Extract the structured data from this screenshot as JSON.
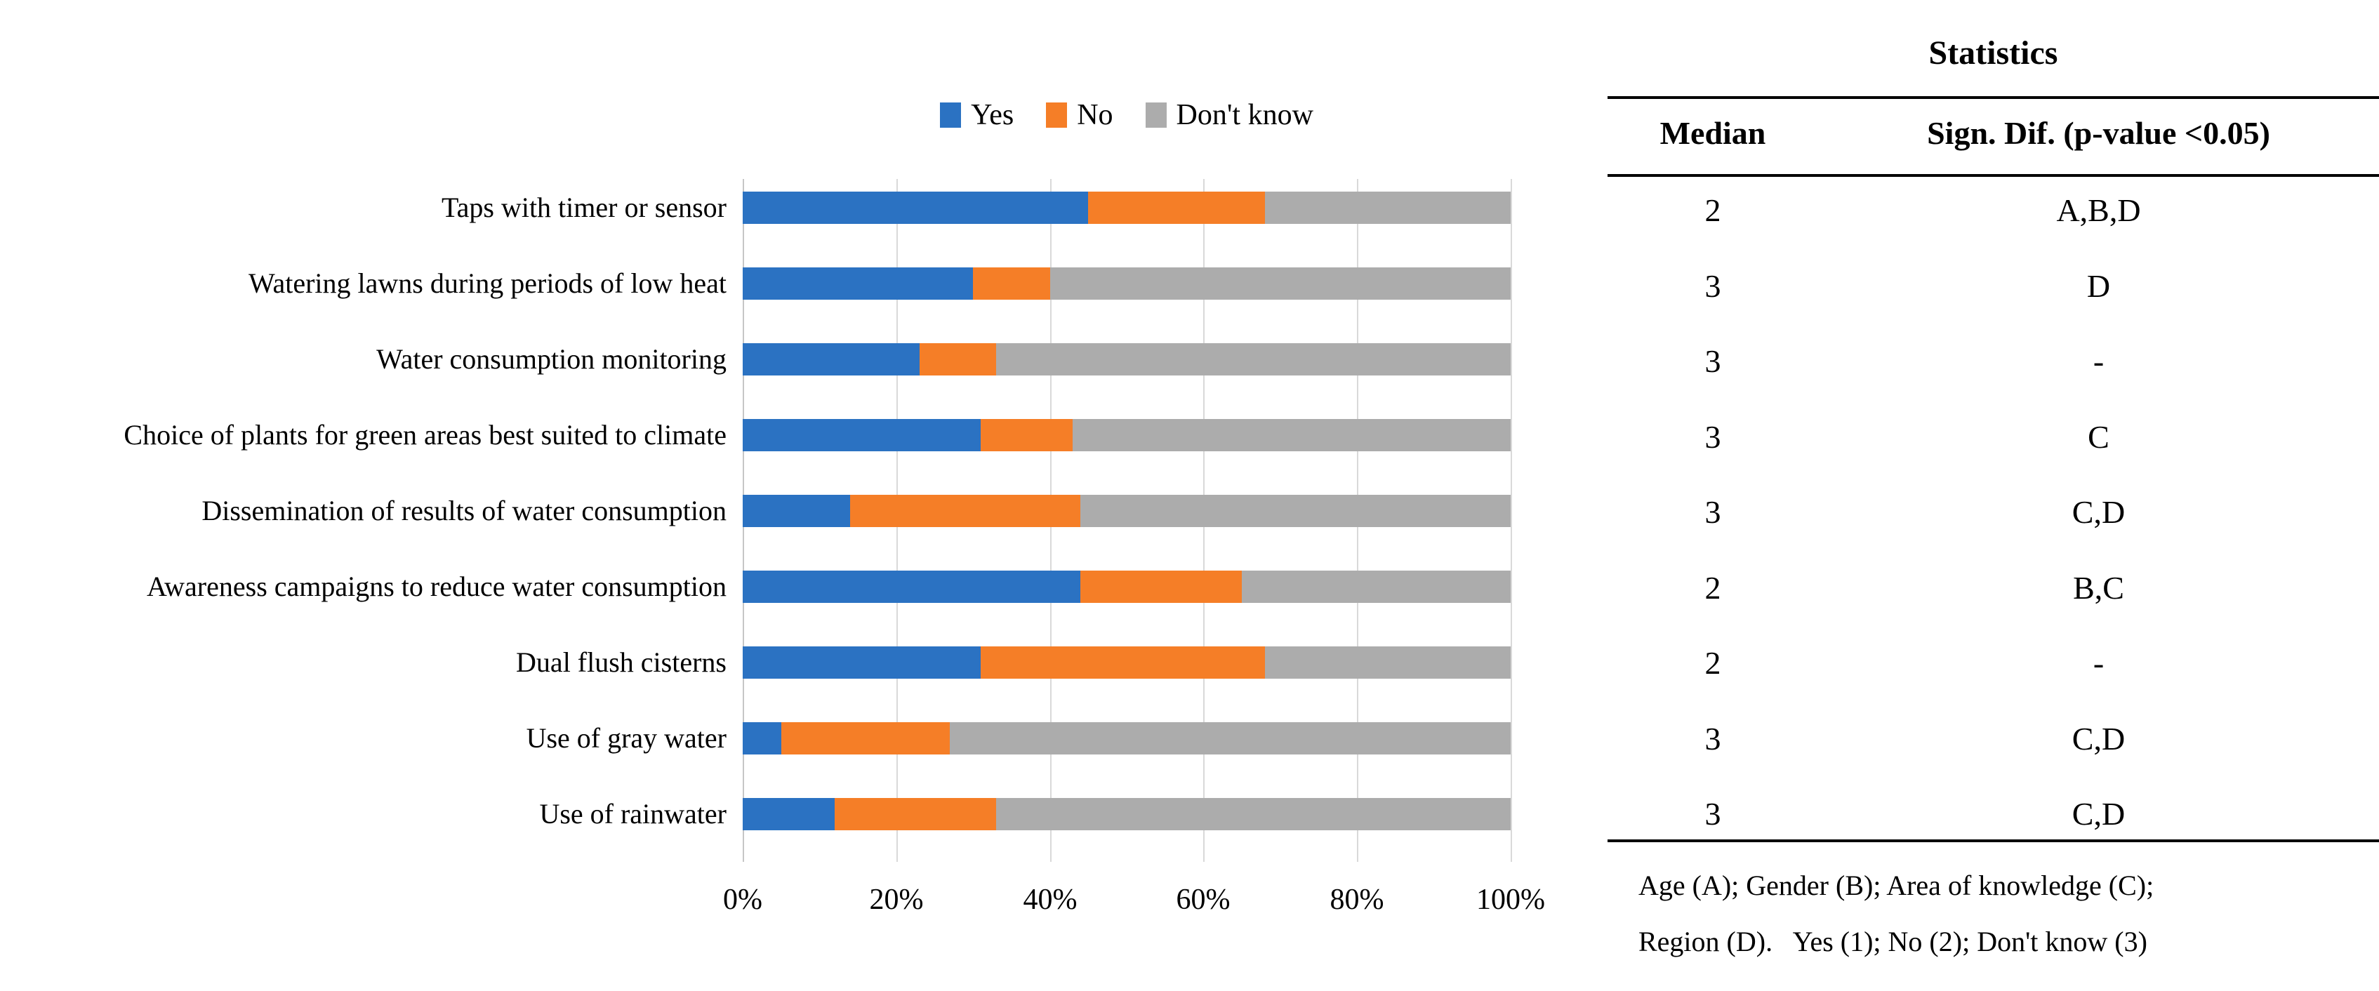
{
  "legend": [
    {
      "label": "Yes",
      "color": "#2b72c2"
    },
    {
      "label": "No",
      "color": "#f57e27"
    },
    {
      "label": "Don't know",
      "color": "#acacac"
    }
  ],
  "chart_data": {
    "type": "bar",
    "orientation": "horizontal",
    "stacked": true,
    "units": "percent",
    "categories": [
      "Taps with timer or sensor",
      "Watering lawns during periods of low heat",
      "Water consumption monitoring",
      "Choice of plants for green areas best suited to climate",
      "Dissemination of results of water consumption",
      "Awareness campaigns to reduce water consumption",
      "Dual flush cisterns",
      "Use of gray water",
      "Use of rainwater"
    ],
    "series": [
      {
        "name": "Yes",
        "color": "#2b72c2",
        "values": [
          45,
          30,
          23,
          31,
          14,
          44,
          31,
          5,
          12
        ]
      },
      {
        "name": "No",
        "color": "#f57e27",
        "values": [
          23,
          10,
          10,
          12,
          30,
          21,
          37,
          22,
          21
        ]
      },
      {
        "name": "Don't know",
        "color": "#acacac",
        "values": [
          32,
          60,
          67,
          57,
          56,
          35,
          32,
          73,
          67
        ]
      }
    ],
    "xlim": [
      0,
      100
    ],
    "x_ticks": [
      "0%",
      "20%",
      "40%",
      "60%",
      "80%",
      "100%"
    ],
    "grid": true,
    "gridline_color": "#d9d9d9",
    "legend_position": "top"
  },
  "table": {
    "title": "Statistics",
    "columns": [
      "Median",
      "Sign. Dif. (p-value <0.05)"
    ],
    "rows": [
      {
        "median": "2",
        "sig": "A,B,D"
      },
      {
        "median": "3",
        "sig": "D"
      },
      {
        "median": "3",
        "sig": "-"
      },
      {
        "median": "3",
        "sig": "C"
      },
      {
        "median": "3",
        "sig": "C,D"
      },
      {
        "median": "2",
        "sig": "B,C"
      },
      {
        "median": "2",
        "sig": "-"
      },
      {
        "median": "3",
        "sig": "C,D"
      },
      {
        "median": "3",
        "sig": "C,D"
      }
    ],
    "footnote_line1": "Age (A); Gender (B); Area of knowledge (C);",
    "footnote_line2": "Region (D).   Yes (1); No (2); Don't know (3)"
  }
}
